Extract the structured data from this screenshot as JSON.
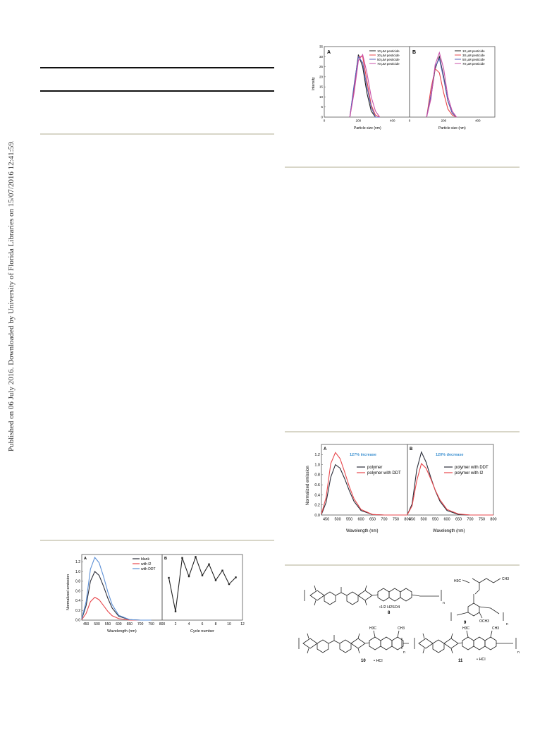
{
  "sidebar": {
    "citation": "Published on 06 July 2016. Downloaded by University of Florida Libraries on 15/07/2016 12:41:59."
  },
  "fig_particle": {
    "panels": [
      {
        "letter": "A",
        "legend": [
          "10 µM pesticide",
          "30 µM pesticide",
          "50 µM pesticide",
          "70 µM pesticide"
        ]
      },
      {
        "letter": "B",
        "legend": [
          "10 µM pesticide",
          "30 µM pesticide",
          "50 µM pesticide",
          "70 µM pesticide"
        ]
      }
    ],
    "ylabel": "Intensity",
    "xlabel": "Particle size (nm)",
    "yticks": [
      "0",
      "5",
      "10",
      "15",
      "20",
      "25",
      "30",
      "35"
    ],
    "xticks_a": [
      "0",
      "200",
      "400"
    ],
    "xticks_b": [
      "0",
      "200",
      "400"
    ]
  },
  "fig_emission_small": {
    "panel_a": {
      "letter": "A",
      "legend": [
        "blank",
        "with I2",
        "with DDT"
      ]
    },
    "panel_b": {
      "letter": "B"
    },
    "ylabel": "Normalized emission",
    "xlabel_a": "Wavelength (nm)",
    "xlabel_b": "Cycle number",
    "yticks": [
      "0.0",
      "0.2",
      "0.4",
      "0.6",
      "0.8",
      "1.0",
      "1.2"
    ],
    "xticks_a": [
      "450",
      "500",
      "550",
      "600",
      "650",
      "700",
      "750",
      "800"
    ],
    "xticks_b": [
      "2",
      "4",
      "6",
      "8",
      "10",
      "12"
    ]
  },
  "fig_emission_large": {
    "panel_a": {
      "letter": "A",
      "annotation": "127% increase",
      "legend": [
        "polymer",
        "polymer with DDT"
      ]
    },
    "panel_b": {
      "letter": "B",
      "annotation": "120% decrease",
      "legend": [
        "polymer with DDT",
        "polymer with I2"
      ]
    },
    "ylabel": "Normalized emission",
    "xlabel": "Wavelength (nm)",
    "yticks": [
      "0.0",
      "0.2",
      "0.4",
      "0.6",
      "0.8",
      "1.0",
      "1.2"
    ],
    "xticks": [
      "450",
      "500",
      "550",
      "600",
      "650",
      "700",
      "750",
      "800"
    ]
  },
  "fig_structures": {
    "labels": {
      "s8": "8",
      "s9": "9",
      "s10": "10",
      "s11": "11",
      "acid": "•1/2 H2SO4",
      "hcl1": "• HCl",
      "hcl2": "• HCl",
      "n": "n",
      "ch3": "CH3",
      "h3c": "H3C",
      "och3": "OCH3"
    }
  },
  "chart_data": [
    {
      "type": "line",
      "title": "",
      "xlabel": "Particle size (nm)",
      "ylabel": "Intensity",
      "panel": "A",
      "xlim": [
        0,
        500
      ],
      "ylim": [
        0,
        35
      ],
      "x": [
        150,
        175,
        200,
        225,
        250,
        275,
        300,
        325
      ],
      "series": [
        {
          "name": "10 µM pesticide",
          "values": [
            0,
            15,
            31,
            25,
            12,
            3,
            0,
            0
          ]
        },
        {
          "name": "30 µM pesticide",
          "values": [
            0,
            14,
            30,
            30,
            18,
            6,
            1,
            0
          ]
        },
        {
          "name": "50 µM pesticide",
          "values": [
            0,
            16,
            30,
            27,
            15,
            5,
            0,
            0
          ]
        },
        {
          "name": "70 µM pesticide",
          "values": [
            0,
            12,
            28,
            31,
            22,
            10,
            3,
            0
          ]
        }
      ]
    },
    {
      "type": "line",
      "title": "",
      "xlabel": "Particle size (nm)",
      "ylabel": "Intensity",
      "panel": "B",
      "xlim": [
        0,
        500
      ],
      "ylim": [
        0,
        35
      ],
      "x": [
        100,
        125,
        150,
        175,
        200,
        225,
        250,
        275
      ],
      "series": [
        {
          "name": "10 µM pesticide",
          "values": [
            0,
            10,
            24,
            30,
            20,
            8,
            2,
            0
          ]
        },
        {
          "name": "30 µM pesticide",
          "values": [
            0,
            14,
            24,
            22,
            12,
            4,
            1,
            0
          ]
        },
        {
          "name": "50 µM pesticide",
          "values": [
            0,
            11,
            25,
            29,
            19,
            8,
            2,
            0
          ]
        },
        {
          "name": "70 µM pesticide",
          "values": [
            0,
            9,
            26,
            32,
            24,
            10,
            3,
            0
          ]
        }
      ]
    },
    {
      "type": "line",
      "title": "",
      "xlabel": "Wavelength (nm)",
      "ylabel": "Normalized emission",
      "panel": "A",
      "xlim": [
        430,
        800
      ],
      "ylim": [
        0,
        1.35
      ],
      "x": [
        430,
        450,
        470,
        490,
        510,
        530,
        550,
        570,
        600,
        650,
        700,
        750
      ],
      "series": [
        {
          "name": "blank",
          "values": [
            0.02,
            0.3,
            0.8,
            1.0,
            0.92,
            0.7,
            0.45,
            0.25,
            0.08,
            0.01,
            0.0,
            0.0
          ]
        },
        {
          "name": "with I2",
          "values": [
            0.01,
            0.14,
            0.38,
            0.47,
            0.42,
            0.3,
            0.18,
            0.09,
            0.03,
            0.0,
            0.0,
            0.0
          ]
        },
        {
          "name": "with DDT",
          "values": [
            0.03,
            0.38,
            1.05,
            1.29,
            1.18,
            0.9,
            0.58,
            0.32,
            0.1,
            0.01,
            0.0,
            0.0
          ]
        }
      ]
    },
    {
      "type": "line",
      "title": "",
      "xlabel": "Cycle number",
      "ylabel": "Normalized emission",
      "panel": "B",
      "xlim": [
        0,
        12
      ],
      "ylim": [
        0,
        1.35
      ],
      "x": [
        1,
        2,
        3,
        4,
        5,
        6,
        7,
        8,
        9,
        10,
        11
      ],
      "series": [
        {
          "name": "",
          "values": [
            0.87,
            0.18,
            1.28,
            0.9,
            1.3,
            0.92,
            1.15,
            0.82,
            1.02,
            0.74,
            0.88
          ]
        }
      ]
    },
    {
      "type": "line",
      "title": "",
      "xlabel": "Wavelength (nm)",
      "ylabel": "Normalized emission",
      "panel": "A",
      "xlim": [
        430,
        800
      ],
      "ylim": [
        0,
        1.4
      ],
      "x": [
        430,
        450,
        470,
        490,
        510,
        530,
        550,
        570,
        600,
        650,
        700,
        750,
        800
      ],
      "series": [
        {
          "name": "polymer",
          "values": [
            0.01,
            0.25,
            0.75,
            1.0,
            0.93,
            0.72,
            0.48,
            0.27,
            0.09,
            0.01,
            0.0,
            0.0,
            0.0
          ]
        },
        {
          "name": "polymer with DDT",
          "values": [
            0.02,
            0.35,
            1.02,
            1.24,
            1.12,
            0.85,
            0.56,
            0.32,
            0.11,
            0.01,
            0.0,
            0.0,
            0.0
          ]
        }
      ]
    },
    {
      "type": "line",
      "title": "",
      "xlabel": "Wavelength (nm)",
      "ylabel": "Normalized emission",
      "panel": "B",
      "xlim": [
        430,
        800
      ],
      "ylim": [
        0,
        1.4
      ],
      "x": [
        430,
        450,
        470,
        490,
        510,
        530,
        550,
        570,
        600,
        650,
        700,
        750,
        800
      ],
      "series": [
        {
          "name": "polymer with DDT",
          "values": [
            0.01,
            0.22,
            0.9,
            1.25,
            1.05,
            0.75,
            0.48,
            0.27,
            0.09,
            0.01,
            0.0,
            0.0,
            0.0
          ]
        },
        {
          "name": "polymer with I2",
          "values": [
            0.01,
            0.18,
            0.68,
            1.02,
            0.93,
            0.72,
            0.49,
            0.3,
            0.11,
            0.02,
            0.0,
            0.0,
            0.0
          ]
        }
      ]
    }
  ]
}
